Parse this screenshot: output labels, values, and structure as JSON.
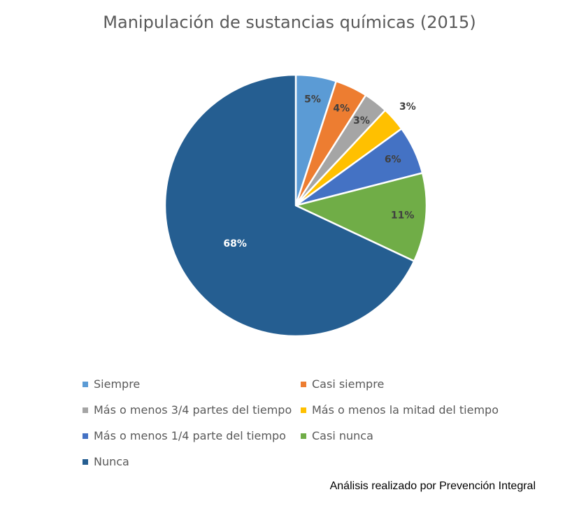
{
  "chart_data": {
    "type": "pie",
    "title": "Manipulación de sustancias químicas (2015)",
    "start_angle_deg": 0,
    "direction": "clockwise",
    "slices": [
      {
        "label": "Siempre",
        "value": 5,
        "display": "5%",
        "color": "#5B9BD5",
        "label_color": "#404040"
      },
      {
        "label": "Casi siempre",
        "value": 4,
        "display": "4%",
        "color": "#ED7D31",
        "label_color": "#404040"
      },
      {
        "label": "Más o menos 3/4 partes del tiempo",
        "value": 3,
        "display": "3%",
        "color": "#A5A5A5",
        "label_color": "#404040"
      },
      {
        "label": "Más o menos la mitad del tiempo",
        "value": 3,
        "display": "3%",
        "color": "#FFC000",
        "label_color": "#404040"
      },
      {
        "label": "Más o menos 1/4 parte del tiempo",
        "value": 6,
        "display": "6%",
        "color": "#4472C4",
        "label_color": "#404040"
      },
      {
        "label": "Casi nunca",
        "value": 11,
        "display": "11%",
        "color": "#70AD47",
        "label_color": "#404040"
      },
      {
        "label": "Nunca",
        "value": 68,
        "display": "68%",
        "color": "#255E91",
        "label_color": "#FFFFFF"
      }
    ],
    "legend_position": "bottom"
  },
  "footer": {
    "note": "Análisis realizado por Prevención Integral"
  }
}
